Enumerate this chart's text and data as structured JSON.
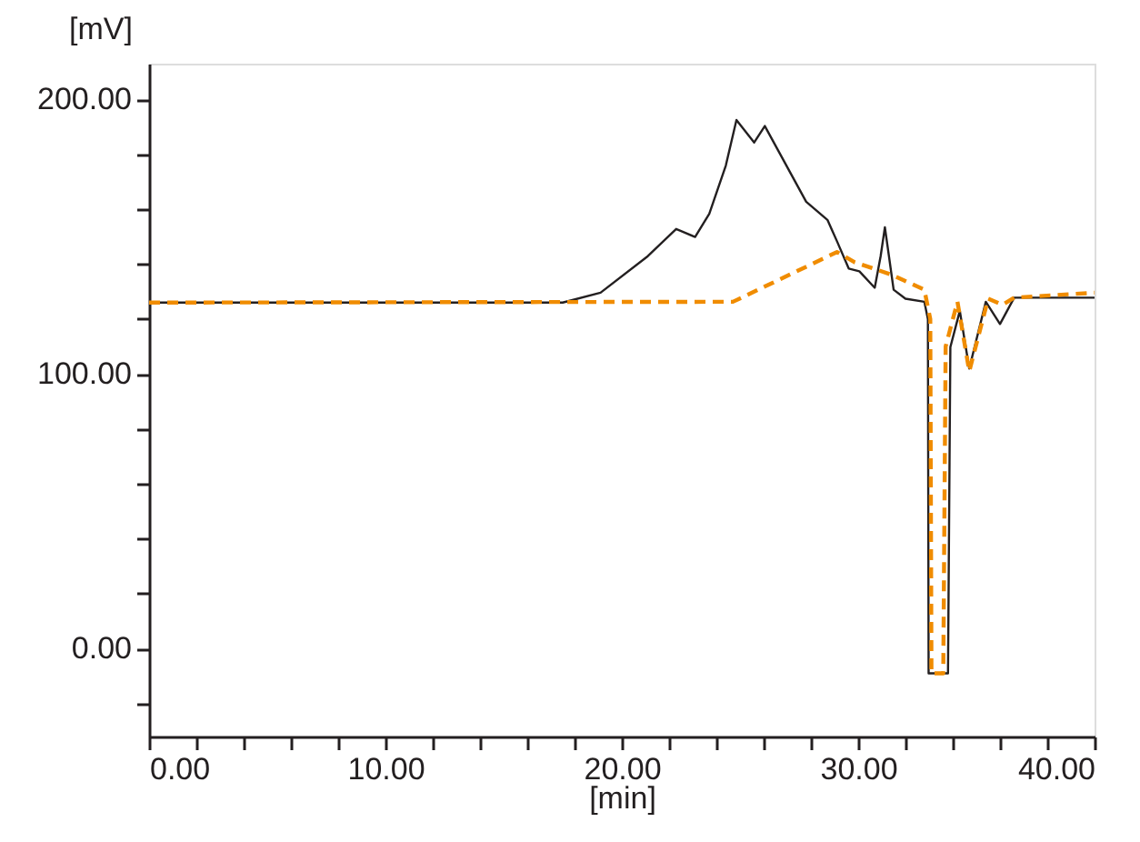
{
  "chart_data": {
    "type": "line",
    "xlabel": "[min]",
    "ylabel": "[mV]",
    "xlim": [
      0,
      40
    ],
    "ylim": [
      -32,
      213
    ],
    "xticks": [
      {
        "value": 0,
        "label": "0.00"
      },
      {
        "value": 2,
        "label": null
      },
      {
        "value": 4,
        "label": null
      },
      {
        "value": 6,
        "label": null
      },
      {
        "value": 8,
        "label": null
      },
      {
        "value": 10,
        "label": "10.00"
      },
      {
        "value": 12,
        "label": null
      },
      {
        "value": 14,
        "label": null
      },
      {
        "value": 16,
        "label": null
      },
      {
        "value": 18,
        "label": null
      },
      {
        "value": 20,
        "label": "20.00"
      },
      {
        "value": 22,
        "label": null
      },
      {
        "value": 24,
        "label": null
      },
      {
        "value": 26,
        "label": null
      },
      {
        "value": 28,
        "label": null
      },
      {
        "value": 30,
        "label": "30.00"
      },
      {
        "value": 32,
        "label": null
      },
      {
        "value": 34,
        "label": null
      },
      {
        "value": 36,
        "label": null
      },
      {
        "value": 38,
        "label": null
      },
      {
        "value": 40,
        "label": "40.00"
      }
    ],
    "yticks": [
      {
        "value": -20,
        "label": null
      },
      {
        "value": 0,
        "label": "0.00"
      },
      {
        "value": 20,
        "label": null
      },
      {
        "value": 40,
        "label": null
      },
      {
        "value": 60,
        "label": null
      },
      {
        "value": 80,
        "label": null
      },
      {
        "value": 100,
        "label": "100.00"
      },
      {
        "value": 120,
        "label": null
      },
      {
        "value": 140,
        "label": null
      },
      {
        "value": 160,
        "label": null
      },
      {
        "value": 180,
        "label": null
      },
      {
        "value": 200,
        "label": "200.00"
      }
    ],
    "grid": false,
    "marker": "none",
    "series": [
      {
        "color": "#231f20",
        "line_style": "solid",
        "x": [
          0,
          17.5,
          19.1,
          21.1,
          22.3,
          23.1,
          23.7,
          24.4,
          24.85,
          25.6,
          26.05,
          27.8,
          28.7,
          29.1,
          29.6,
          30.05,
          30.7,
          30.95,
          31.13,
          31.3,
          31.5,
          32.0,
          32.8,
          32.95,
          32.98,
          33.8,
          33.9,
          34.3,
          34.7,
          35.4,
          36.0,
          36.6,
          40
        ],
        "values": [
          126,
          126,
          129.6,
          142.9,
          152.8,
          149.9,
          158.3,
          175.9,
          192.5,
          184.3,
          190.3,
          162.7,
          156.1,
          148.4,
          138.4,
          137.4,
          131.4,
          142.9,
          153.4,
          143,
          130.7,
          127.4,
          126.3,
          120,
          -9,
          -9,
          109.8,
          123,
          102,
          126.3,
          118.2,
          127.8,
          127.8
        ]
      },
      {
        "color": "#f08c00",
        "line_style": "dashed",
        "x": [
          0,
          24.7,
          29.1,
          29.85,
          31.4,
          32.8,
          33.05,
          33.1,
          33.6,
          33.7,
          34.2,
          34.7,
          35.5,
          36.1,
          36.6,
          40
        ],
        "values": [
          126,
          126.3,
          144.4,
          140.7,
          136.2,
          130.7,
          120,
          -9,
          -9,
          110,
          126.3,
          101,
          127.4,
          125.2,
          127.8,
          129.6
        ]
      }
    ]
  }
}
